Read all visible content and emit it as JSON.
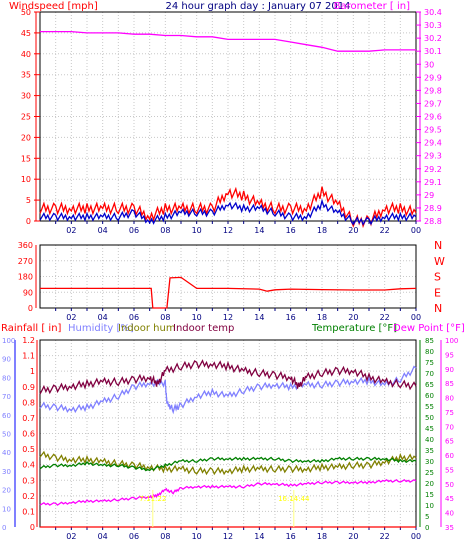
{
  "chart_data": [
    {
      "type": "line",
      "title": "24 hour graph day : January 07 2014",
      "ylabel_left": "Windspeed [mph]",
      "ylabel_right": "Barometer [ in]",
      "x_tick_labels": [
        "02",
        "04",
        "06",
        "08",
        "10",
        "12",
        "14",
        "16",
        "18",
        "20",
        "22",
        "00"
      ],
      "ylim_left": [
        0,
        50
      ],
      "yticks_left": [
        "0",
        "5",
        "10",
        "15",
        "20",
        "25",
        "30",
        "35",
        "40",
        "45",
        "50"
      ],
      "ylim_right": [
        28.8,
        30.4
      ],
      "yticks_right": [
        "28.8",
        "28.9",
        "29",
        "29.1",
        "29.2",
        "29.3",
        "29.4",
        "29.5",
        "29.6",
        "29.7",
        "29.8",
        "29.9",
        "30",
        "30.1",
        "30.2",
        "30.3",
        "30.4"
      ],
      "series": [
        {
          "name": "Barometer [ in]",
          "color": "#ff00ff",
          "hours": [
            0,
            1,
            2,
            3,
            4,
            5,
            6,
            7,
            8,
            9,
            10,
            11,
            12,
            13,
            14,
            15,
            16,
            17,
            18,
            19,
            20,
            21,
            22,
            23,
            24
          ],
          "values": [
            30.25,
            30.25,
            30.25,
            30.24,
            30.24,
            30.24,
            30.23,
            30.23,
            30.22,
            30.22,
            30.21,
            30.21,
            30.19,
            30.19,
            30.19,
            30.19,
            30.17,
            30.15,
            30.13,
            30.1,
            30.1,
            30.1,
            30.11,
            30.11,
            30.11
          ]
        },
        {
          "name": "Windspeed gust",
          "color": "#ff0000",
          "hours": [
            0,
            1,
            2,
            3,
            4,
            5,
            6,
            7,
            8,
            9,
            10,
            11,
            12,
            13,
            14,
            15,
            16,
            17,
            18,
            19,
            20,
            21,
            22,
            23,
            24
          ],
          "values": [
            3,
            3,
            3,
            3,
            3,
            3,
            3,
            1,
            3,
            3,
            3,
            3,
            7,
            6,
            4,
            3,
            3,
            3,
            7,
            4,
            0,
            0,
            3,
            3,
            2
          ]
        },
        {
          "name": "Windspeed average",
          "color": "#0000cc",
          "hours": [
            0,
            1,
            2,
            3,
            4,
            5,
            6,
            7,
            8,
            9,
            10,
            11,
            12,
            13,
            14,
            15,
            16,
            17,
            18,
            19,
            20,
            21,
            22,
            23,
            24
          ],
          "values": [
            1,
            1,
            1,
            1,
            1,
            1,
            2,
            0,
            1,
            2,
            2,
            2,
            4,
            3,
            3,
            2,
            1,
            1,
            4,
            2,
            0,
            0,
            1,
            1,
            1
          ]
        }
      ]
    },
    {
      "type": "line",
      "y_tick_labels": [
        "0",
        "90",
        "180",
        "270",
        "360"
      ],
      "compass_labels": [
        "N",
        "W",
        "S",
        "E",
        "N"
      ],
      "x_tick_labels": [
        "02",
        "04",
        "06",
        "08",
        "10",
        "12",
        "14",
        "16",
        "18",
        "20",
        "22",
        "00"
      ],
      "ylim": [
        0,
        360
      ],
      "series": [
        {
          "name": "Wind direction",
          "color": "#ff0000",
          "hours": [
            0,
            6,
            7.1,
            7.2,
            8.1,
            8.3,
            9,
            10,
            12,
            14,
            14.5,
            15,
            16,
            18,
            20,
            22,
            23,
            24
          ],
          "values": [
            112,
            112,
            112,
            0,
            0,
            172,
            175,
            112,
            112,
            108,
            96,
            104,
            108,
            105,
            103,
            103,
            110,
            112
          ]
        }
      ]
    },
    {
      "type": "line",
      "legend": [
        "Rainfall [ in]",
        "Humidity [%]",
        "Indoor hum",
        "Indoor temp",
        "Temperature [°F]",
        "Dew Point [°F]"
      ],
      "x_tick_labels": [
        "02",
        "04",
        "06",
        "08",
        "10",
        "12",
        "14",
        "16",
        "18",
        "20",
        "22",
        "00"
      ],
      "rain_ylim": [
        0,
        1.2
      ],
      "rain_ticks": [
        "0",
        "0.1",
        "0.2",
        "0.3",
        "0.4",
        "0.5",
        "0.6",
        "0.7",
        "0.8",
        "0.9",
        "1",
        "1.1",
        "1.2"
      ],
      "hum_ylim": [
        0,
        100
      ],
      "hum_ticks": [
        "0",
        "10",
        "20",
        "30",
        "40",
        "50",
        "60",
        "70",
        "80",
        "90",
        "100"
      ],
      "temp_ylim": [
        0,
        85
      ],
      "temp_ticks": [
        "0",
        "5",
        "10",
        "15",
        "20",
        "25",
        "30",
        "35",
        "40",
        "45",
        "50",
        "55",
        "60",
        "65",
        "70",
        "75",
        "80",
        "85"
      ],
      "dew_ylim": [
        35,
        100
      ],
      "dew_ticks": [
        "35",
        "40",
        "45",
        "50",
        "55",
        "60",
        "65",
        "70",
        "75",
        "80",
        "85",
        "90",
        "95",
        "100"
      ],
      "annotations": [
        {
          "text": "7:11:22",
          "hour": 7.2
        },
        {
          "text": "16:14:44",
          "hour": 16.2
        }
      ],
      "series": [
        {
          "name": "Humidity [%]",
          "color": "#8080ff",
          "hours": [
            0,
            1,
            2,
            3,
            4,
            5,
            6,
            7,
            8,
            8.1,
            8.5,
            9,
            10,
            11,
            12,
            13,
            14,
            15,
            16,
            17,
            18,
            19,
            20,
            21,
            22,
            23,
            24
          ],
          "values": [
            65,
            64,
            63,
            64,
            67,
            70,
            75,
            77,
            77,
            66,
            63,
            65,
            70,
            72,
            70,
            73,
            75,
            76,
            75,
            76,
            76,
            77,
            78,
            78,
            76,
            79,
            85
          ]
        },
        {
          "name": "Indoor temp",
          "color": "#800040",
          "hours": [
            0,
            1,
            2,
            3,
            4,
            5,
            6,
            7,
            7.5,
            8,
            9,
            10,
            11,
            12,
            13,
            14,
            15,
            16,
            16.5,
            17,
            18,
            19,
            20,
            21,
            22,
            23,
            24
          ],
          "values": [
            62,
            63,
            64,
            65,
            66,
            66,
            67,
            68,
            65,
            71,
            73,
            74,
            74,
            73,
            71,
            70,
            69,
            68,
            64,
            68,
            70,
            71,
            71,
            68,
            66,
            65,
            64
          ]
        },
        {
          "name": "Indoor hum",
          "color": "#808000",
          "hours": [
            0,
            1,
            2,
            3,
            4,
            5,
            6,
            7,
            8,
            9,
            10,
            11,
            12,
            13,
            14,
            15,
            16,
            17,
            18,
            19,
            20,
            21,
            22,
            23,
            24
          ],
          "values": [
            39,
            37,
            36,
            36,
            35,
            34,
            33,
            32,
            31,
            31,
            30,
            30,
            30,
            31,
            31,
            31,
            31,
            31,
            32,
            32,
            33,
            33,
            35,
            37,
            37
          ]
        },
        {
          "name": "Temperature [°F]",
          "color": "#008000",
          "hours": [
            0,
            1,
            2,
            3,
            4,
            5,
            6,
            7,
            8,
            9,
            10,
            11,
            12,
            13,
            14,
            15,
            16,
            17,
            18,
            19,
            20,
            21,
            22,
            23,
            24
          ],
          "values": [
            27,
            28,
            28,
            29,
            28,
            28,
            27,
            26,
            28,
            30,
            30,
            31,
            31,
            31,
            31,
            31,
            30,
            30,
            30,
            31,
            31,
            31,
            31,
            30,
            30
          ]
        },
        {
          "name": "Dew Point [°F]",
          "color": "#ff00ff",
          "hours": [
            0,
            1,
            2,
            3,
            4,
            5,
            6,
            7,
            7.5,
            8,
            8.5,
            9,
            10,
            11,
            12,
            13,
            14,
            15,
            16,
            17,
            18,
            19,
            20,
            21,
            22,
            23,
            24
          ],
          "values": [
            43,
            43,
            43.5,
            44,
            44,
            44.5,
            45,
            45.5,
            46,
            48,
            47,
            48.5,
            49,
            49,
            49,
            49,
            50,
            50,
            49.5,
            50,
            50.5,
            50.5,
            50.5,
            50.5,
            51,
            51,
            51
          ]
        },
        {
          "name": "Rainfall [ in]",
          "color": "#ff0000",
          "hours": [
            0,
            24
          ],
          "values": [
            0,
            0
          ]
        }
      ]
    }
  ]
}
